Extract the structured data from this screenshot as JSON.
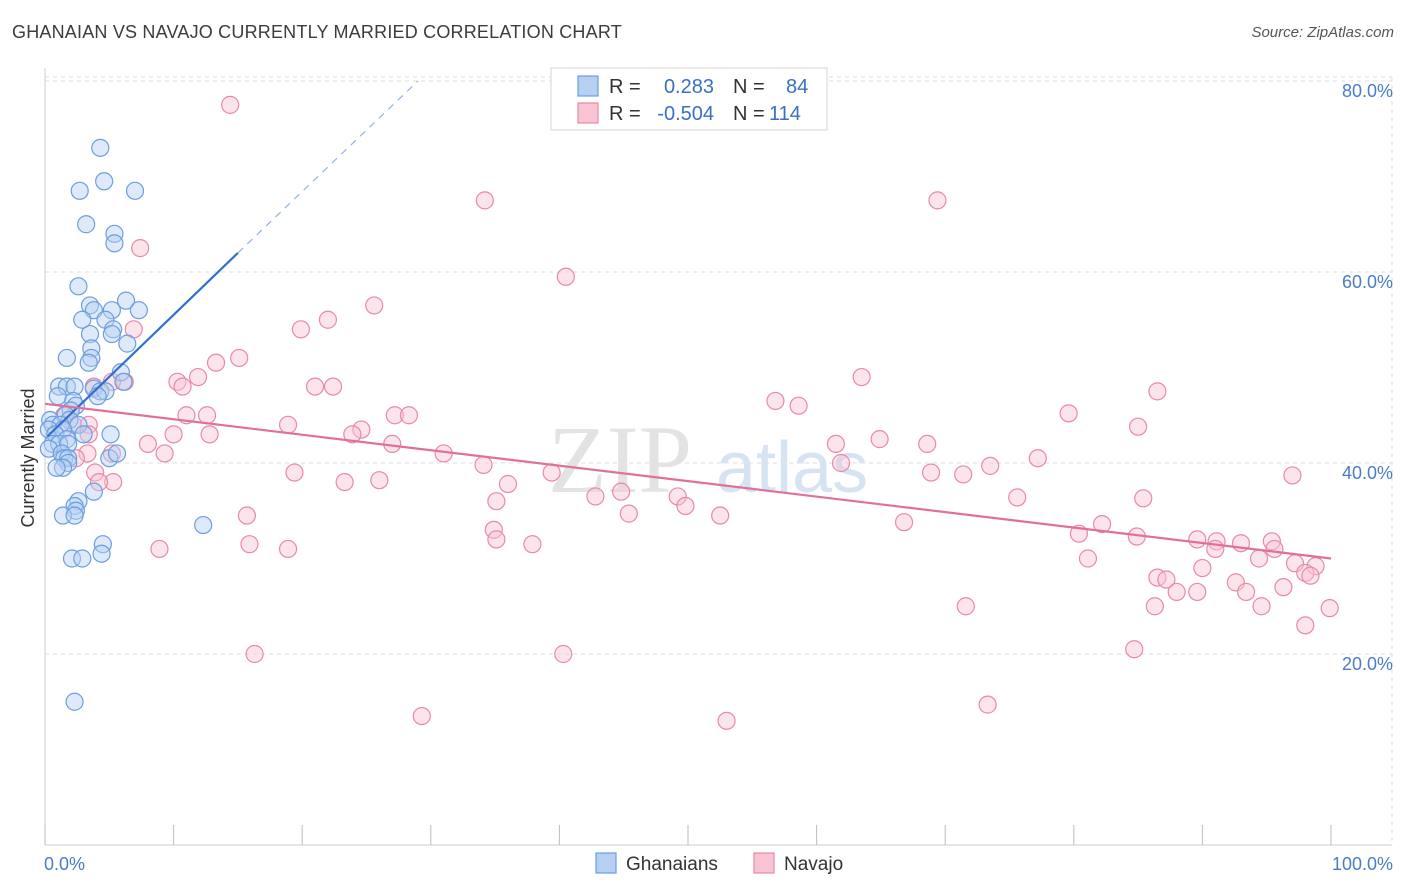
{
  "title": "GHANAIAN VS NAVAJO CURRENTLY MARRIED CORRELATION CHART",
  "source": "Source: ZipAtlas.com",
  "watermark": {
    "zip": "ZIP",
    "atlas": "atlas"
  },
  "legend": {
    "r_label": "R =",
    "n_label": "N =",
    "rows": [
      {
        "r": "0.283",
        "n": "84",
        "fill": "#b6d0f2",
        "stroke": "#6a9ee0"
      },
      {
        "r": "-0.504",
        "n": "114",
        "fill": "#f8c3d3",
        "stroke": "#e889a8"
      }
    ]
  },
  "bottom_legend": [
    {
      "label": "Ghanaians",
      "fill": "#b6d0f2",
      "stroke": "#6a9ee0"
    },
    {
      "label": "Navajo",
      "fill": "#f8c3d3",
      "stroke": "#e889a8"
    }
  ],
  "chart_data": {
    "type": "scatter",
    "title": "GHANAIAN VS NAVAJO CURRENTLY MARRIED CORRELATION CHART",
    "xlabel": "",
    "ylabel": "Currently Married",
    "xlim": [
      0,
      100
    ],
    "ylim": [
      0,
      82
    ],
    "x_tick_labels": [
      "0.0%",
      "100.0%"
    ],
    "y_ticks": [
      20,
      40,
      60,
      80
    ],
    "y_tick_labels": [
      "20.0%",
      "40.0%",
      "60.0%",
      "80.0%"
    ],
    "grid": true,
    "series": [
      {
        "name": "Ghanaians",
        "color": "#6a9ee0",
        "fill": "#b6d0f2",
        "R": 0.283,
        "N": 84,
        "trend": {
          "x": [
            0.2,
            15.0
          ],
          "y": [
            42.8,
            62.0
          ],
          "dashed_to": [
            29.0,
            80.0
          ]
        },
        "points": [
          [
            4.3,
            73
          ],
          [
            4.6,
            69.5
          ],
          [
            2.7,
            68.5
          ],
          [
            7.0,
            68.5
          ],
          [
            3.2,
            65
          ],
          [
            5.4,
            64
          ],
          [
            5.4,
            63
          ],
          [
            2.6,
            58.5
          ],
          [
            6.3,
            57
          ],
          [
            3.5,
            56.5
          ],
          [
            3.8,
            56
          ],
          [
            7.3,
            56
          ],
          [
            5.2,
            56
          ],
          [
            2.9,
            55
          ],
          [
            4.7,
            55
          ],
          [
            5.3,
            54
          ],
          [
            3.5,
            53.5
          ],
          [
            5.2,
            53.5
          ],
          [
            6.4,
            52.5
          ],
          [
            3.6,
            52
          ],
          [
            3.6,
            51
          ],
          [
            1.7,
            51
          ],
          [
            3.4,
            50.5
          ],
          [
            5.9,
            49.5
          ],
          [
            6.1,
            48.5
          ],
          [
            1.1,
            48
          ],
          [
            1.7,
            48
          ],
          [
            2.3,
            48
          ],
          [
            3.8,
            47.8
          ],
          [
            4.3,
            47.5
          ],
          [
            4.7,
            47.5
          ],
          [
            1.0,
            47
          ],
          [
            4.1,
            47
          ],
          [
            2.2,
            46.5
          ],
          [
            2.4,
            46
          ],
          [
            2.0,
            45.5
          ],
          [
            1.6,
            45
          ],
          [
            0.4,
            44.5
          ],
          [
            1.9,
            44.5
          ],
          [
            0.6,
            44
          ],
          [
            1.2,
            44
          ],
          [
            2.6,
            44
          ],
          [
            0.3,
            43.5
          ],
          [
            1.4,
            43.5
          ],
          [
            0.8,
            43
          ],
          [
            3.0,
            43
          ],
          [
            5.1,
            43
          ],
          [
            1.7,
            42.5
          ],
          [
            0.6,
            42
          ],
          [
            1.1,
            42
          ],
          [
            1.8,
            42
          ],
          [
            0.3,
            41.5
          ],
          [
            1.3,
            41
          ],
          [
            1.5,
            40.5
          ],
          [
            1.8,
            40.5
          ],
          [
            5.0,
            40.5
          ],
          [
            5.6,
            41
          ],
          [
            1.8,
            40
          ],
          [
            1.4,
            39.5
          ],
          [
            0.9,
            39.5
          ],
          [
            3.8,
            37
          ],
          [
            2.6,
            36
          ],
          [
            2.3,
            35.5
          ],
          [
            2.4,
            35
          ],
          [
            1.4,
            34.5
          ],
          [
            2.3,
            34.5
          ],
          [
            12.3,
            33.5
          ],
          [
            4.5,
            31.5
          ],
          [
            4.4,
            30.5
          ],
          [
            2.1,
            30
          ],
          [
            2.9,
            30
          ],
          [
            2.3,
            15
          ]
        ]
      },
      {
        "name": "Navajo",
        "color": "#e889a8",
        "fill": "#f8c3d3",
        "R": -0.504,
        "N": 114,
        "trend": {
          "x": [
            0.0,
            100.0
          ],
          "y": [
            46.2,
            30.0
          ]
        },
        "points": [
          [
            14.4,
            77.5
          ],
          [
            34.2,
            67.5
          ],
          [
            69.4,
            67.5
          ],
          [
            7.4,
            62.5
          ],
          [
            40.5,
            59.5
          ],
          [
            25.6,
            56.5
          ],
          [
            19.9,
            54
          ],
          [
            22.0,
            55
          ],
          [
            6.9,
            54
          ],
          [
            15.1,
            51
          ],
          [
            13.3,
            50.5
          ],
          [
            11.9,
            49
          ],
          [
            10.3,
            48.5
          ],
          [
            10.7,
            48
          ],
          [
            6.2,
            48.5
          ],
          [
            21.0,
            48
          ],
          [
            22.4,
            48
          ],
          [
            5.2,
            48.5
          ],
          [
            3.8,
            48
          ],
          [
            56.8,
            46.5
          ],
          [
            58.6,
            46
          ],
          [
            63.5,
            49
          ],
          [
            86.5,
            47.5
          ],
          [
            79.6,
            45.2
          ],
          [
            27.2,
            45
          ],
          [
            28.3,
            45
          ],
          [
            11.0,
            45
          ],
          [
            12.6,
            45
          ],
          [
            1.5,
            45
          ],
          [
            2.2,
            44
          ],
          [
            18.9,
            44
          ],
          [
            3.4,
            44
          ],
          [
            24.6,
            43.5
          ],
          [
            23.9,
            43
          ],
          [
            10.0,
            43
          ],
          [
            12.8,
            43
          ],
          [
            3.4,
            43
          ],
          [
            85.0,
            43.8
          ],
          [
            61.5,
            42
          ],
          [
            64.9,
            42.5
          ],
          [
            68.6,
            42
          ],
          [
            27.0,
            42
          ],
          [
            8.0,
            42
          ],
          [
            9.3,
            41
          ],
          [
            31.0,
            41
          ],
          [
            3.3,
            41
          ],
          [
            5.2,
            41
          ],
          [
            77.2,
            40.5
          ],
          [
            61.9,
            40
          ],
          [
            73.5,
            39.7
          ],
          [
            34.1,
            39.8
          ],
          [
            2.4,
            40.5
          ],
          [
            3.9,
            39
          ],
          [
            19.4,
            39
          ],
          [
            39.4,
            39
          ],
          [
            68.9,
            39
          ],
          [
            71.4,
            38.8
          ],
          [
            97.0,
            38.7
          ],
          [
            5.3,
            38
          ],
          [
            4.2,
            38
          ],
          [
            23.3,
            38
          ],
          [
            26.0,
            38.2
          ],
          [
            36.0,
            37.8
          ],
          [
            44.8,
            37
          ],
          [
            49.2,
            36.5
          ],
          [
            75.6,
            36.4
          ],
          [
            42.8,
            36.5
          ],
          [
            35.1,
            36
          ],
          [
            49.8,
            35.5
          ],
          [
            85.4,
            36.3
          ],
          [
            15.7,
            34.5
          ],
          [
            45.4,
            34.7
          ],
          [
            52.5,
            34.5
          ],
          [
            66.8,
            33.8
          ],
          [
            82.2,
            33.6
          ],
          [
            34.9,
            33
          ],
          [
            35.1,
            32
          ],
          [
            37.9,
            31.5
          ],
          [
            15.9,
            31.5
          ],
          [
            18.9,
            31
          ],
          [
            8.9,
            31
          ],
          [
            80.4,
            32.6
          ],
          [
            84.9,
            32.3
          ],
          [
            89.6,
            32
          ],
          [
            91.1,
            31.8
          ],
          [
            93.0,
            31.6
          ],
          [
            95.4,
            31.8
          ],
          [
            91.0,
            31
          ],
          [
            95.6,
            31
          ],
          [
            81.1,
            30
          ],
          [
            94.4,
            30
          ],
          [
            97.2,
            29.5
          ],
          [
            98.8,
            29.2
          ],
          [
            90.0,
            29
          ],
          [
            98.0,
            28.5
          ],
          [
            98.4,
            28.2
          ],
          [
            86.5,
            28
          ],
          [
            87.2,
            27.8
          ],
          [
            92.6,
            27.5
          ],
          [
            96.3,
            27
          ],
          [
            88.0,
            26.5
          ],
          [
            89.6,
            26.5
          ],
          [
            93.4,
            26.5
          ],
          [
            71.6,
            25
          ],
          [
            86.3,
            25
          ],
          [
            94.6,
            25
          ],
          [
            99.9,
            24.8
          ],
          [
            98.0,
            23
          ],
          [
            84.7,
            20.5
          ],
          [
            16.3,
            20
          ],
          [
            40.3,
            20
          ],
          [
            73.3,
            14.7
          ],
          [
            29.3,
            13.5
          ],
          [
            53.0,
            13
          ]
        ]
      }
    ]
  }
}
